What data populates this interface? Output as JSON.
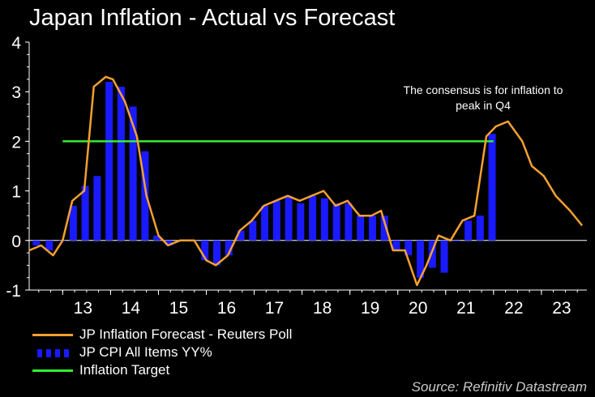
{
  "chart_data": {
    "type": "line",
    "title": "Japan Inflation - Actual vs Forecast",
    "source": "Source: Refinitiv Datastream",
    "annotation": "The consensus is for inflation to peak in Q4",
    "annotation_lines": [
      "The consensus is for inflation to",
      "peak in Q4"
    ],
    "ylim": [
      -1,
      4
    ],
    "yticks": [
      -1,
      0,
      1,
      2,
      3,
      4
    ],
    "xlim": [
      2012.3,
      2023.95
    ],
    "xticks": [
      {
        "label": "13",
        "pos": 2013.0
      },
      {
        "label": "14",
        "pos": 2014.0
      },
      {
        "label": "15",
        "pos": 2015.0
      },
      {
        "label": "16",
        "pos": 2016.0
      },
      {
        "label": "17",
        "pos": 2017.0
      },
      {
        "label": "18",
        "pos": 2018.0
      },
      {
        "label": "19",
        "pos": 2019.0
      },
      {
        "label": "20",
        "pos": 2020.0
      },
      {
        "label": "21",
        "pos": 2021.0
      },
      {
        "label": "22",
        "pos": 2022.0
      },
      {
        "label": "23",
        "pos": 2023.0
      }
    ],
    "series": [
      {
        "name": "JP Inflation Forecast - Reuters Poll",
        "kind": "line",
        "color": "#f5a030",
        "points": [
          [
            2012.3,
            -0.2
          ],
          [
            2012.55,
            -0.1
          ],
          [
            2012.8,
            -0.3
          ],
          [
            2013.0,
            0.0
          ],
          [
            2013.2,
            0.8
          ],
          [
            2013.45,
            1.0
          ],
          [
            2013.65,
            3.1
          ],
          [
            2013.9,
            3.3
          ],
          [
            2014.05,
            3.25
          ],
          [
            2014.3,
            2.8
          ],
          [
            2014.55,
            2.1
          ],
          [
            2014.75,
            0.9
          ],
          [
            2015.0,
            0.1
          ],
          [
            2015.2,
            -0.1
          ],
          [
            2015.45,
            0.0
          ],
          [
            2015.75,
            0.0
          ],
          [
            2016.0,
            -0.4
          ],
          [
            2016.2,
            -0.5
          ],
          [
            2016.45,
            -0.3
          ],
          [
            2016.7,
            0.2
          ],
          [
            2016.95,
            0.4
          ],
          [
            2017.2,
            0.7
          ],
          [
            2017.45,
            0.8
          ],
          [
            2017.7,
            0.9
          ],
          [
            2017.95,
            0.8
          ],
          [
            2018.2,
            0.9
          ],
          [
            2018.45,
            1.0
          ],
          [
            2018.7,
            0.7
          ],
          [
            2018.95,
            0.8
          ],
          [
            2019.2,
            0.5
          ],
          [
            2019.45,
            0.5
          ],
          [
            2019.65,
            0.6
          ],
          [
            2019.9,
            -0.2
          ],
          [
            2020.15,
            -0.2
          ],
          [
            2020.4,
            -0.9
          ],
          [
            2020.6,
            -0.5
          ],
          [
            2020.85,
            0.1
          ],
          [
            2021.1,
            0.0
          ],
          [
            2021.35,
            0.4
          ],
          [
            2021.6,
            0.5
          ],
          [
            2021.85,
            2.1
          ],
          [
            2022.05,
            2.3
          ],
          [
            2022.3,
            2.4
          ],
          [
            2022.6,
            2.0
          ],
          [
            2022.8,
            1.5
          ],
          [
            2023.05,
            1.3
          ],
          [
            2023.3,
            0.9
          ],
          [
            2023.6,
            0.6
          ],
          [
            2023.85,
            0.3
          ]
        ]
      },
      {
        "name": "JP CPI All Items YY%",
        "kind": "bar",
        "color": "#1a1aff",
        "points": [
          [
            2012.45,
            -0.1
          ],
          [
            2012.72,
            -0.2
          ],
          [
            2012.98,
            0.0
          ],
          [
            2013.22,
            0.7
          ],
          [
            2013.47,
            1.1
          ],
          [
            2013.72,
            1.3
          ],
          [
            2013.97,
            3.2
          ],
          [
            2014.22,
            3.1
          ],
          [
            2014.47,
            2.7
          ],
          [
            2014.72,
            1.8
          ],
          [
            2014.97,
            0.1
          ],
          [
            2015.22,
            -0.1
          ],
          [
            2015.47,
            0.0
          ],
          [
            2015.72,
            0.0
          ],
          [
            2015.97,
            -0.4
          ],
          [
            2016.22,
            -0.5
          ],
          [
            2016.47,
            -0.3
          ],
          [
            2016.72,
            0.2
          ],
          [
            2016.97,
            0.4
          ],
          [
            2017.22,
            0.7
          ],
          [
            2017.47,
            0.8
          ],
          [
            2017.72,
            0.9
          ],
          [
            2017.97,
            0.75
          ],
          [
            2018.22,
            0.9
          ],
          [
            2018.47,
            0.85
          ],
          [
            2018.72,
            0.75
          ],
          [
            2018.97,
            0.75
          ],
          [
            2019.22,
            0.5
          ],
          [
            2019.47,
            0.5
          ],
          [
            2019.72,
            0.5
          ],
          [
            2019.97,
            -0.2
          ],
          [
            2020.22,
            -0.3
          ],
          [
            2020.47,
            -0.75
          ],
          [
            2020.72,
            -0.55
          ],
          [
            2020.97,
            -0.65
          ],
          [
            2021.22,
            0.0
          ],
          [
            2021.47,
            0.4
          ],
          [
            2021.72,
            0.5
          ],
          [
            2021.97,
            2.15
          ]
        ]
      },
      {
        "name": "Inflation Target",
        "kind": "hline",
        "color": "#33ee33",
        "value": 2,
        "x_range": [
          2013.0,
          2022.0
        ]
      }
    ],
    "legend_position": "bottom-left",
    "grid": false
  }
}
